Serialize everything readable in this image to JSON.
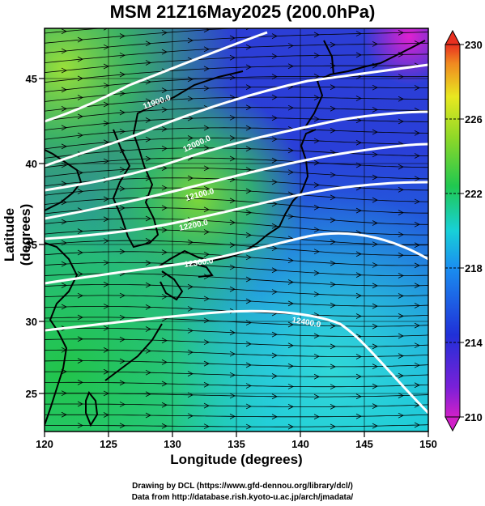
{
  "title": "MSM 21Z16May2025 (200.0hPa)",
  "axes": {
    "xlabel": "Longitude (degrees)",
    "ylabel": "Latitude  (degrees)",
    "xticks": [
      "120",
      "125",
      "130",
      "135",
      "140",
      "145",
      "150"
    ],
    "yticks": [
      "25",
      "30",
      "35",
      "40",
      "45"
    ]
  },
  "colorbar": {
    "ticks": [
      "230",
      "226",
      "222",
      "218",
      "214",
      "210"
    ]
  },
  "contour_labels": [
    "11900.0",
    "12000.0",
    "12100.0",
    "12200.0",
    "12300.0",
    "12400.0"
  ],
  "credits": {
    "line1": "Drawing by DCL (https://www.gfd-dennou.org/library/dcl/)",
    "line2": "Data from http://database.rish.kyoto-u.ac.jp/arch/jmadata/"
  },
  "colors": {
    "frame": "#000000",
    "contour": "#ffffff",
    "land": "#000000"
  }
}
